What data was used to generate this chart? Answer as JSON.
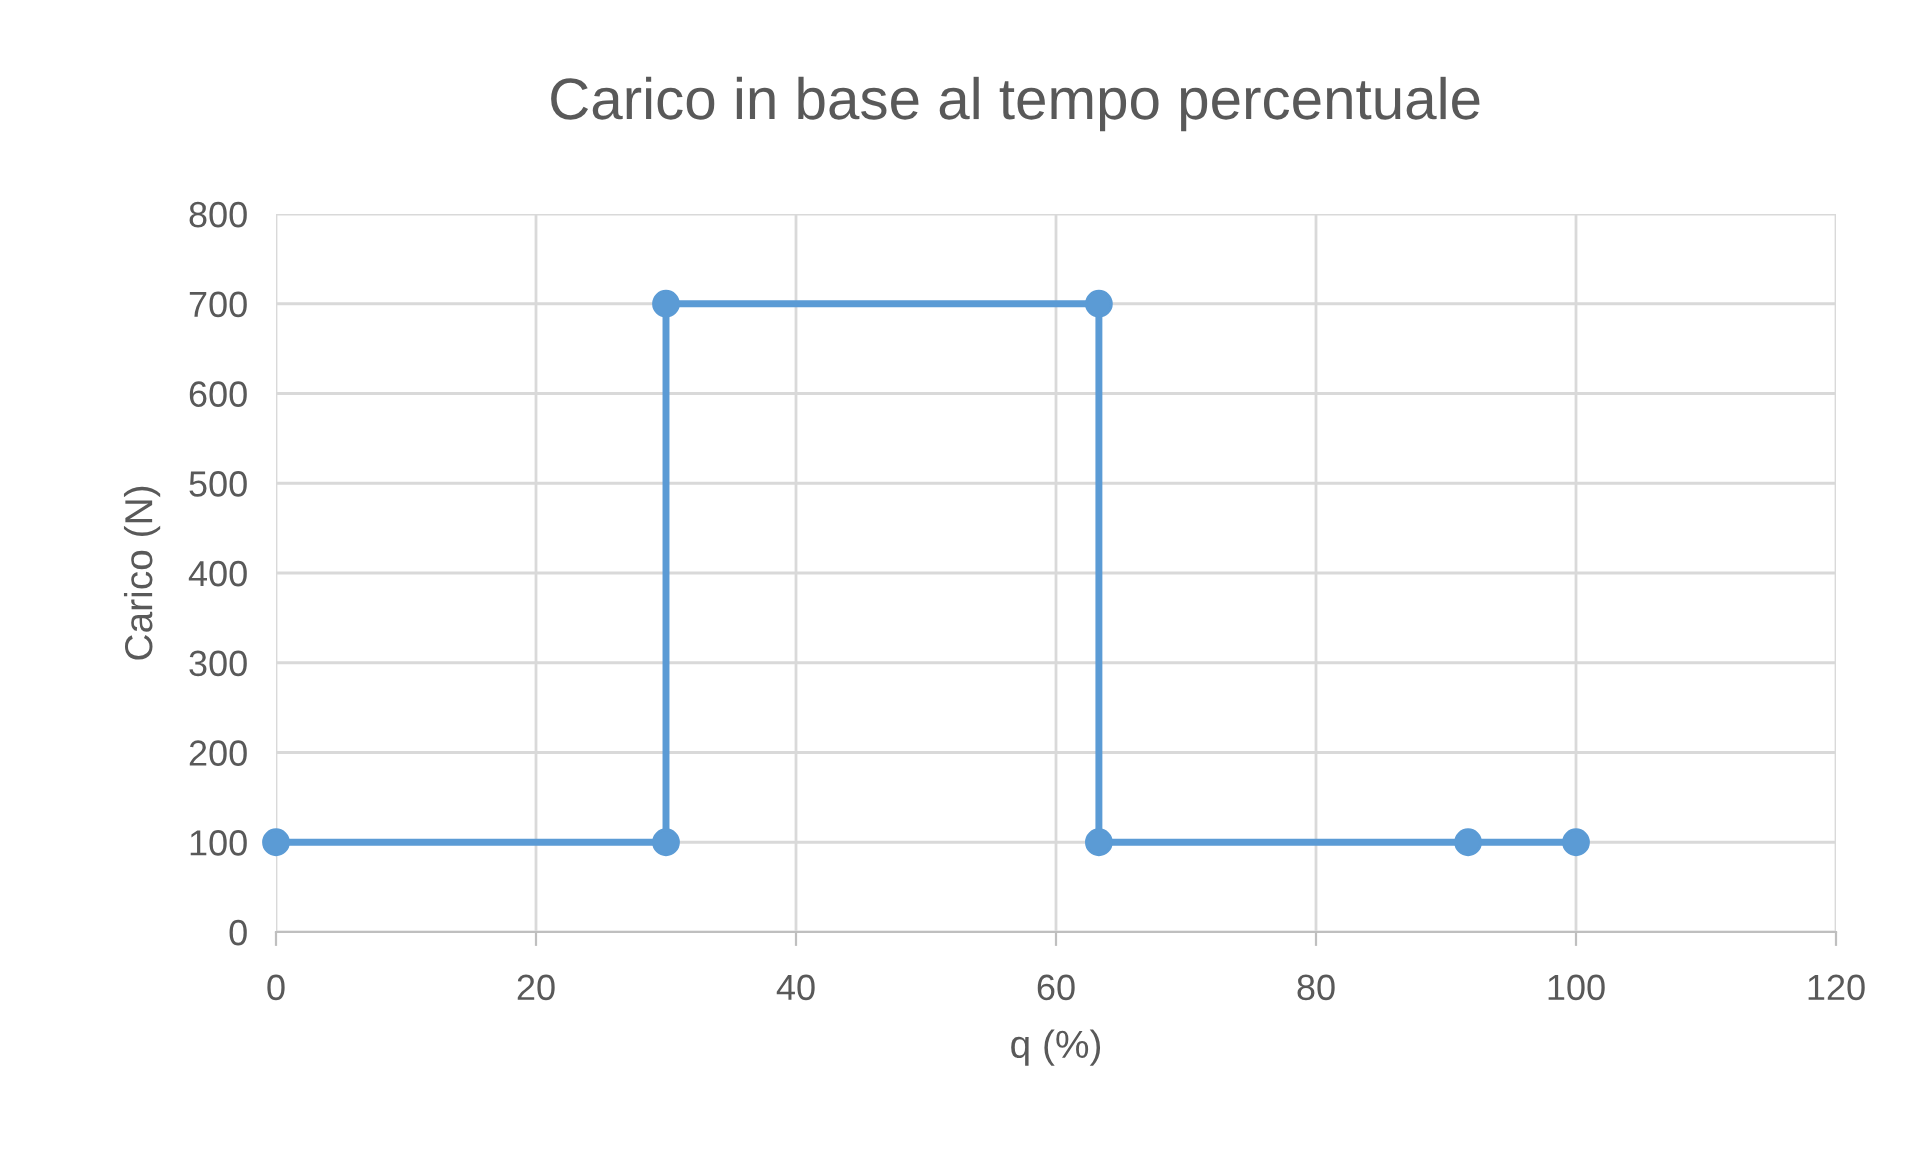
{
  "chart_data": {
    "type": "line",
    "title": "Carico in base al tempo percentuale",
    "xlabel": "q (%)",
    "ylabel": "Carico (N)",
    "x": [
      0,
      30,
      30,
      63.3,
      63.3,
      91.7,
      100
    ],
    "series": [
      {
        "color": "#5b9bd5",
        "values": [
          100,
          100,
          700,
          700,
          100,
          100,
          100
        ]
      }
    ],
    "xlim": [
      0,
      120
    ],
    "xticks": [
      0,
      20,
      40,
      60,
      80,
      100,
      120
    ],
    "ylim": [
      0,
      800
    ],
    "yticks": [
      0,
      100,
      200,
      300,
      400,
      500,
      600,
      700,
      800
    ],
    "grid": true,
    "marker": "circle",
    "line_style": "solid"
  }
}
